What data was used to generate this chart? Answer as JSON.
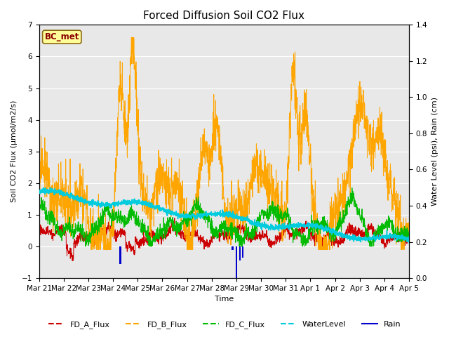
{
  "title": "Forced Diffusion Soil CO2 Flux",
  "ylabel_left": "Soil CO2 Flux (μmol/m2/s)",
  "ylabel_right": "Water Level (psi), Rain (cm)",
  "xlabel": "Time",
  "xlim_days": [
    0,
    15
  ],
  "ylim_left": [
    -1.0,
    7.0
  ],
  "ylim_right": [
    0.0,
    1.4
  ],
  "x_tick_labels": [
    "Mar 21",
    "Mar 22",
    "Mar 23",
    "Mar 24",
    "Mar 25",
    "Mar 26",
    "Mar 27",
    "Mar 28",
    "Mar 29",
    "Mar 30",
    "Mar 31",
    "Apr 1",
    "Apr 2",
    "Apr 3",
    "Apr 4",
    "Apr 5"
  ],
  "bc_met_label": "BC_met",
  "legend_entries": [
    "FD_A_Flux",
    "FD_B_Flux",
    "FD_C_Flux",
    "WaterLevel",
    "Rain"
  ],
  "colors": {
    "FD_A_Flux": "#cc0000",
    "FD_B_Flux": "#ffa500",
    "FD_C_Flux": "#00bb00",
    "WaterLevel": "#00ccdd",
    "Rain": "#0000cc"
  },
  "background_color": "#e8e8e8",
  "title_fontsize": 11,
  "axis_label_fontsize": 8,
  "tick_label_fontsize": 7.5,
  "rain_times": [
    3.3,
    7.85,
    8.0,
    8.15,
    8.25
  ],
  "rain_heights_left": [
    0.55,
    0.12,
    1.18,
    0.45,
    0.35
  ]
}
